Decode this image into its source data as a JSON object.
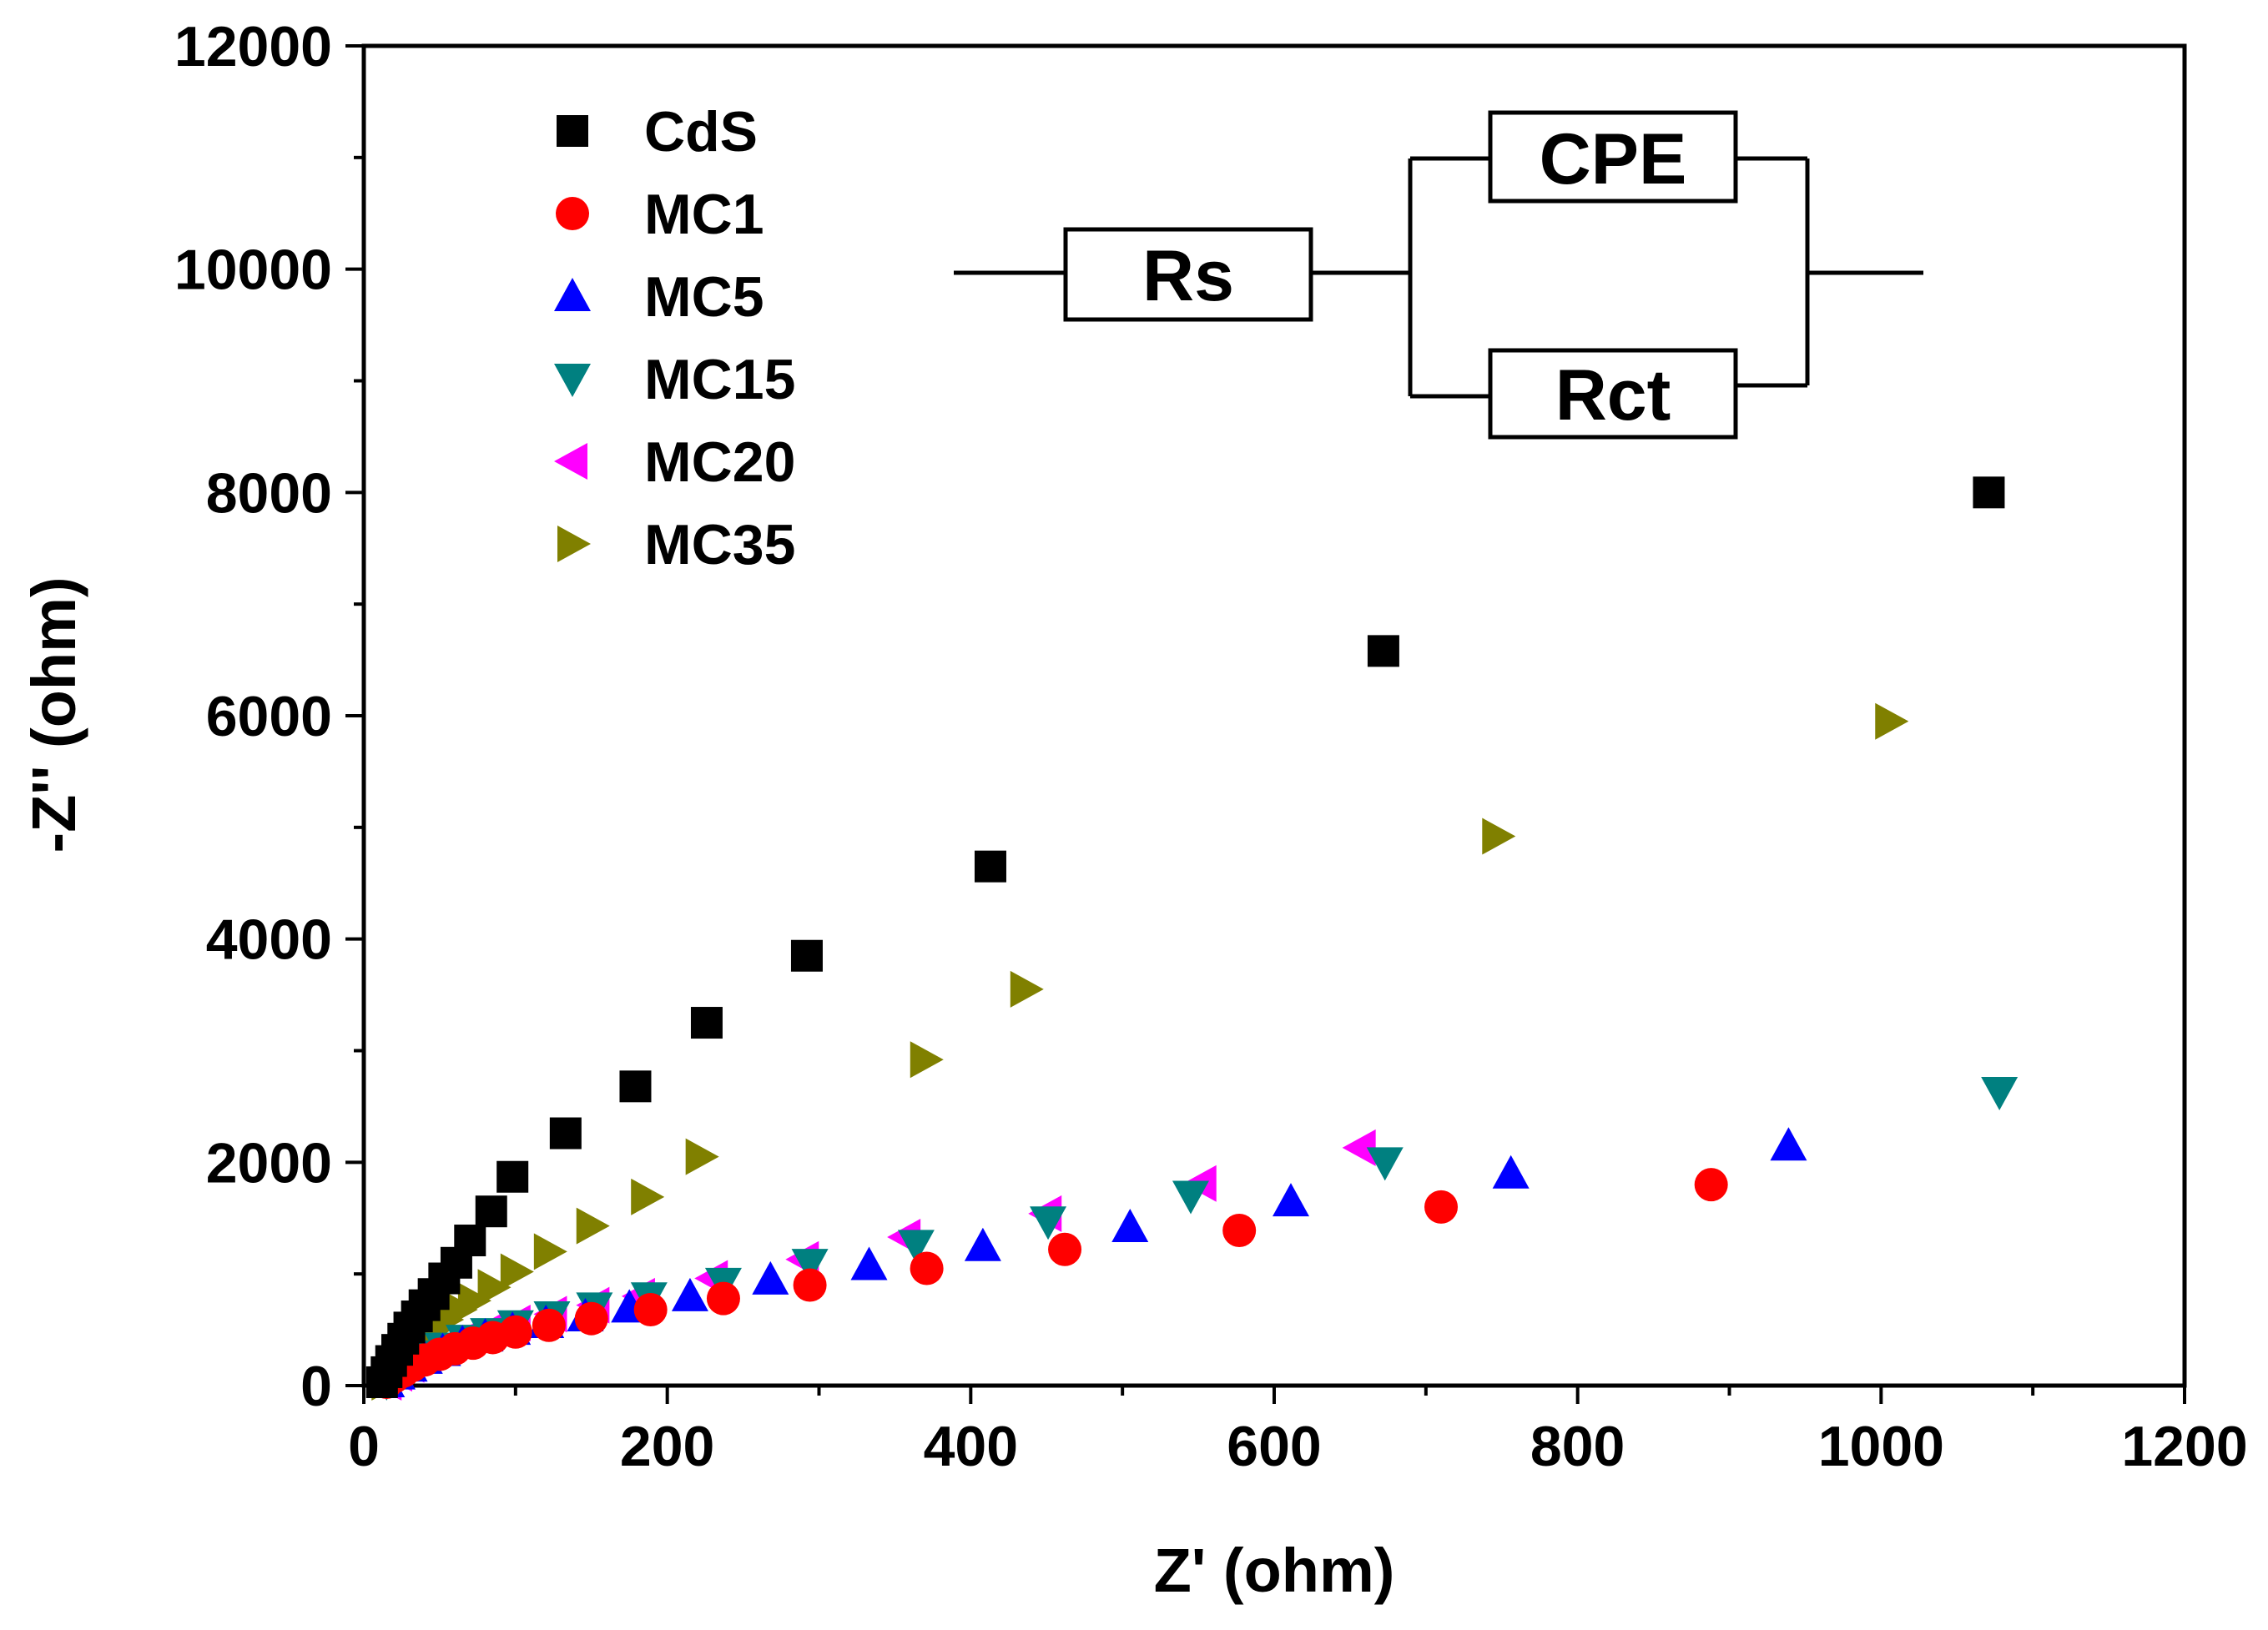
{
  "chart_data": {
    "type": "scatter",
    "title": "",
    "xlabel": "Z' (ohm)",
    "ylabel": "-Z'' (ohm)",
    "xlim": [
      0,
      1200
    ],
    "ylim": [
      0,
      12000
    ],
    "xticks": [
      0,
      200,
      400,
      600,
      800,
      1000,
      1200
    ],
    "yticks": [
      0,
      2000,
      4000,
      6000,
      8000,
      10000,
      12000
    ],
    "xtick_labels": [
      "0",
      "200",
      "400",
      "600",
      "800",
      "1000",
      "1200"
    ],
    "ytick_labels": [
      "0",
      "2000",
      "4000",
      "6000",
      "8000",
      "10000",
      "12000"
    ],
    "legend_position": "top-left",
    "series": [
      {
        "name": "CdS",
        "marker": "square",
        "color": "#000000",
        "x": [
          12,
          15,
          18,
          22,
          26,
          30,
          35,
          40,
          46,
          53,
          61,
          70,
          84,
          98,
          133,
          179,
          226,
          292,
          413,
          672,
          1071
        ],
        "y": [
          30,
          120,
          220,
          320,
          420,
          520,
          620,
          720,
          820,
          960,
          1100,
          1300,
          1560,
          1870,
          2260,
          2680,
          3250,
          3850,
          4650,
          6580,
          8000
        ]
      },
      {
        "name": "MC1",
        "marker": "circle",
        "color": "#ff0000",
        "x": [
          15,
          20,
          26,
          32,
          40,
          50,
          60,
          72,
          85,
          100,
          122,
          150,
          189,
          237,
          294,
          371,
          462,
          577,
          710,
          888
        ],
        "y": [
          30,
          80,
          130,
          180,
          230,
          280,
          330,
          380,
          430,
          480,
          540,
          600,
          680,
          780,
          900,
          1050,
          1220,
          1390,
          1600,
          1800
        ]
      },
      {
        "name": "MC5",
        "marker": "triangle-up",
        "color": "#0000ff",
        "x": [
          15,
          22,
          30,
          40,
          52,
          65,
          80,
          98,
          120,
          146,
          175,
          215,
          268,
          333,
          408,
          505,
          611,
          756,
          939
        ],
        "y": [
          30,
          100,
          170,
          240,
          310,
          380,
          440,
          500,
          560,
          620,
          700,
          800,
          950,
          1080,
          1250,
          1420,
          1650,
          1900,
          2150
        ]
      },
      {
        "name": "MC15",
        "marker": "triangle-down",
        "color": "#008080",
        "x": [
          15,
          22,
          30,
          40,
          52,
          66,
          82,
          100,
          124,
          152,
          188,
          237,
          294,
          364,
          451,
          545,
          673,
          1078
        ],
        "y": [
          30,
          110,
          190,
          270,
          340,
          410,
          470,
          540,
          620,
          700,
          790,
          920,
          1090,
          1260,
          1470,
          1700,
          2000,
          2630
        ]
      },
      {
        "name": "MC20",
        "marker": "triangle-left",
        "color": "#ff00ff",
        "x": [
          15,
          22,
          30,
          40,
          52,
          66,
          82,
          100,
          124,
          152,
          182,
          230,
          290,
          357,
          450,
          552,
          657
        ],
        "y": [
          30,
          110,
          190,
          270,
          350,
          420,
          490,
          560,
          640,
          720,
          800,
          960,
          1130,
          1330,
          1540,
          1810,
          2130
        ]
      },
      {
        "name": "MC35",
        "marker": "triangle-right",
        "color": "#808000",
        "x": [
          15,
          19,
          23,
          28,
          33,
          39,
          46,
          54,
          63,
          72,
          85,
          100,
          122,
          150,
          186,
          222,
          370,
          436,
          747,
          1006
        ],
        "y": [
          30,
          100,
          180,
          260,
          340,
          420,
          500,
          590,
          680,
          760,
          880,
          1020,
          1200,
          1430,
          1690,
          2050,
          2920,
          3550,
          4920,
          5950
        ]
      }
    ]
  },
  "circuit": {
    "rs_label": "Rs",
    "cpe_label": "CPE",
    "rct_label": "Rct"
  }
}
